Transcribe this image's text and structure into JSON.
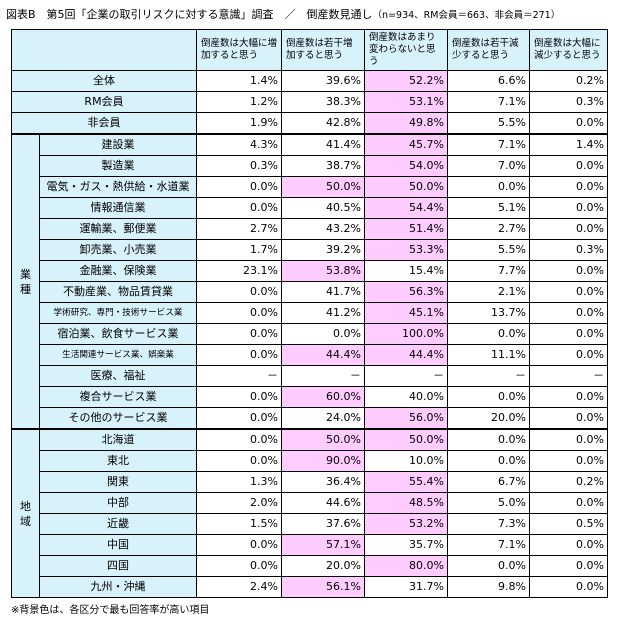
{
  "title": {
    "main": "図表B　第5回「企業の取引リスクに対する意識」調査　／　倒産数見通し",
    "sub": "（n=934、RM会員＝663、非会員＝271）"
  },
  "columns": [
    "倒産数は大幅に増加すると思う",
    "倒産数は若干増加すると思う",
    "倒産数はあまり変わらないと思う",
    "倒産数は若干減少すると思う",
    "倒産数は大幅に減少すると思う"
  ],
  "groups": {
    "industry": "業種",
    "region": "地域"
  },
  "overall": [
    {
      "label": "全体",
      "values": [
        "1.4%",
        "39.6%",
        "52.2%",
        "6.6%",
        "0.2%"
      ],
      "hl": 2
    },
    {
      "label": "RM会員",
      "values": [
        "1.2%",
        "38.3%",
        "53.1%",
        "7.1%",
        "0.3%"
      ],
      "hl": 2
    },
    {
      "label": "非会員",
      "values": [
        "1.9%",
        "42.8%",
        "49.8%",
        "5.5%",
        "0.0%"
      ],
      "hl": 2
    }
  ],
  "industry": [
    {
      "label": "建設業",
      "values": [
        "4.3%",
        "41.4%",
        "45.7%",
        "7.1%",
        "1.4%"
      ],
      "hl": 2
    },
    {
      "label": "製造業",
      "values": [
        "0.3%",
        "38.7%",
        "54.0%",
        "7.0%",
        "0.0%"
      ],
      "hl": 2
    },
    {
      "label": "電気・ガス・熱供給・水道業",
      "values": [
        "0.0%",
        "50.0%",
        "50.0%",
        "0.0%",
        "0.0%"
      ],
      "hl": [
        1,
        2
      ]
    },
    {
      "label": "情報通信業",
      "values": [
        "0.0%",
        "40.5%",
        "54.4%",
        "5.1%",
        "0.0%"
      ],
      "hl": 2
    },
    {
      "label": "運輸業、郵便業",
      "values": [
        "2.7%",
        "43.2%",
        "51.4%",
        "2.7%",
        "0.0%"
      ],
      "hl": 2
    },
    {
      "label": "卸売業、小売業",
      "values": [
        "1.7%",
        "39.2%",
        "53.3%",
        "5.5%",
        "0.3%"
      ],
      "hl": 2
    },
    {
      "label": "金融業、保険業",
      "values": [
        "23.1%",
        "53.8%",
        "15.4%",
        "7.7%",
        "0.0%"
      ],
      "hl": 1
    },
    {
      "label": "不動産業、物品賃貸業",
      "values": [
        "0.0%",
        "41.7%",
        "56.3%",
        "2.1%",
        "0.0%"
      ],
      "hl": 2
    },
    {
      "label": "学術研究、専門・技術サービス業",
      "values": [
        "0.0%",
        "41.2%",
        "45.1%",
        "13.7%",
        "0.0%"
      ],
      "hl": 2,
      "small": true
    },
    {
      "label": "宿泊業、飲食サービス業",
      "values": [
        "0.0%",
        "0.0%",
        "100.0%",
        "0.0%",
        "0.0%"
      ],
      "hl": 2
    },
    {
      "label": "生活関連サービス業、娯楽業",
      "values": [
        "0.0%",
        "44.4%",
        "44.4%",
        "11.1%",
        "0.0%"
      ],
      "hl": [
        1,
        2
      ],
      "small": true
    },
    {
      "label": "医療、福祉",
      "values": [
        "－",
        "－",
        "－",
        "－",
        "－"
      ],
      "hl": -1
    },
    {
      "label": "複合サービス業",
      "values": [
        "0.0%",
        "60.0%",
        "40.0%",
        "0.0%",
        "0.0%"
      ],
      "hl": 1
    },
    {
      "label": "その他のサービス業",
      "values": [
        "0.0%",
        "24.0%",
        "56.0%",
        "20.0%",
        "0.0%"
      ],
      "hl": 2
    }
  ],
  "region": [
    {
      "label": "北海道",
      "values": [
        "0.0%",
        "50.0%",
        "50.0%",
        "0.0%",
        "0.0%"
      ],
      "hl": [
        1,
        2
      ]
    },
    {
      "label": "東北",
      "values": [
        "0.0%",
        "90.0%",
        "10.0%",
        "0.0%",
        "0.0%"
      ],
      "hl": 1
    },
    {
      "label": "関東",
      "values": [
        "1.3%",
        "36.4%",
        "55.4%",
        "6.7%",
        "0.2%"
      ],
      "hl": 2
    },
    {
      "label": "中部",
      "values": [
        "2.0%",
        "44.6%",
        "48.5%",
        "5.0%",
        "0.0%"
      ],
      "hl": 2
    },
    {
      "label": "近畿",
      "values": [
        "1.5%",
        "37.6%",
        "53.2%",
        "7.3%",
        "0.5%"
      ],
      "hl": 2
    },
    {
      "label": "中国",
      "values": [
        "0.0%",
        "57.1%",
        "35.7%",
        "7.1%",
        "0.0%"
      ],
      "hl": 1
    },
    {
      "label": "四国",
      "values": [
        "0.0%",
        "20.0%",
        "80.0%",
        "0.0%",
        "0.0%"
      ],
      "hl": 2
    },
    {
      "label": "九州・沖縄",
      "values": [
        "2.4%",
        "56.1%",
        "31.7%",
        "9.8%",
        "0.0%"
      ],
      "hl": 1
    }
  ],
  "note": "※背景色は、各区分で最も回答率が高い項目",
  "colors": {
    "header_bg": "#d8f2fb",
    "highlight": "#ffccff"
  }
}
